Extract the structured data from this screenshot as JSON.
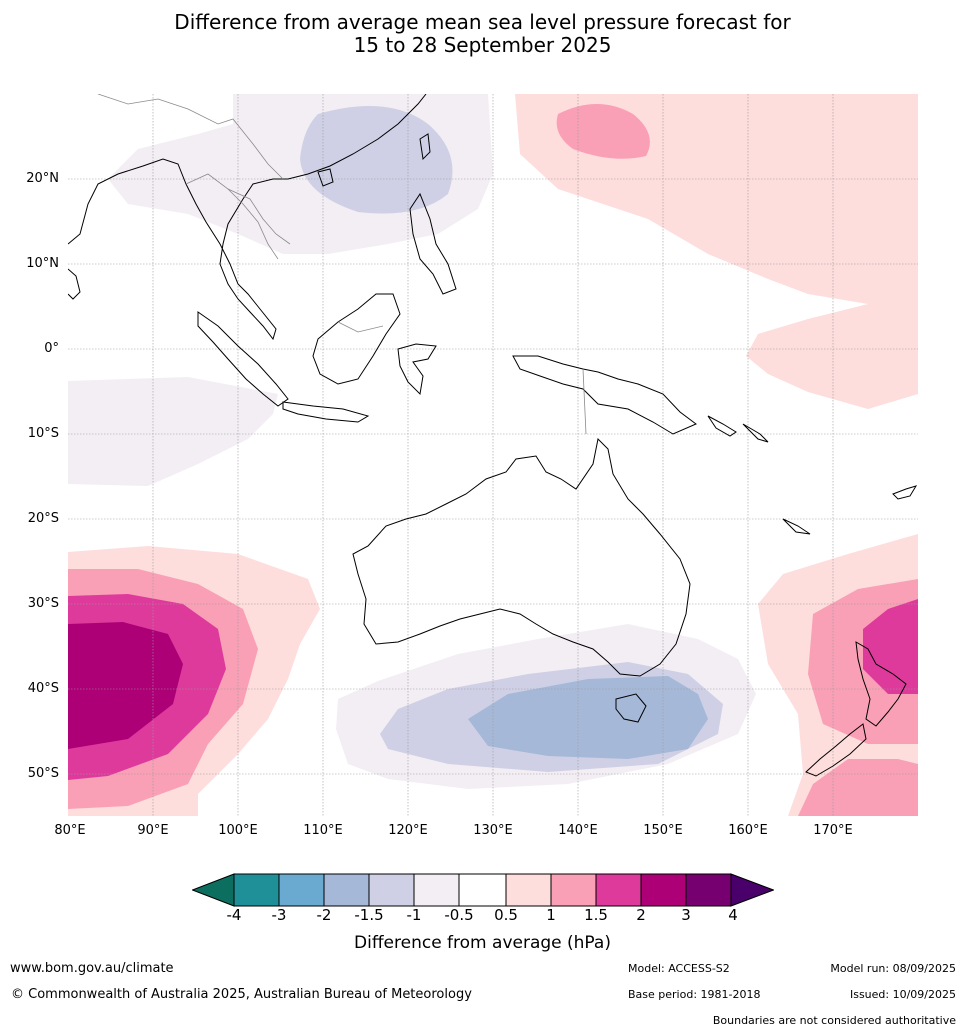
{
  "title_line1": "Difference from average mean sea level pressure forecast for",
  "title_line2": "15 to 28 September 2025",
  "lat_labels": [
    "20°N",
    "10°N",
    "0°",
    "10°S",
    "20°S",
    "30°S",
    "40°S",
    "50°S"
  ],
  "lon_labels": [
    "80°E",
    "90°E",
    "100°E",
    "110°E",
    "120°E",
    "130°E",
    "140°E",
    "150°E",
    "160°E",
    "170°E"
  ],
  "colorbar": {
    "label": "Difference from average (hPa)",
    "ticks": [
      "-4",
      "-3",
      "-2",
      "-1.5",
      "-1",
      "-0.5",
      "0.5",
      "1",
      "1.5",
      "2",
      "3",
      "4"
    ],
    "colors": {
      "below_minus4": "#0b6e5e",
      "m4_m3": "#1f9098",
      "m3_m2": "#6aaad0",
      "m2_m1_5": "#a5b8d7",
      "m1_5_m1": "#cfd0e5",
      "m1_m0_5": "#f3eef4",
      "neutral": "#ffffff",
      "p0_5_p1": "#fedddd",
      "p1_p1_5": "#f9a0b6",
      "p1_5_p2": "#de3a9c",
      "p2_p3": "#ad0077",
      "p3_p4": "#770070",
      "above_4": "#49006a"
    }
  },
  "footer": {
    "url": "www.bom.gov.au/climate",
    "copyright": "© Commonwealth of Australia 2025, Australian Bureau of Meteorology",
    "model": "Model: ACCESS-S2",
    "base_period": "Base period: 1981-2018",
    "model_run": "Model run: 08/09/2025",
    "issued": "Issued: 10/09/2025",
    "disclaimer": "Boundaries are not considered authoritative"
  }
}
